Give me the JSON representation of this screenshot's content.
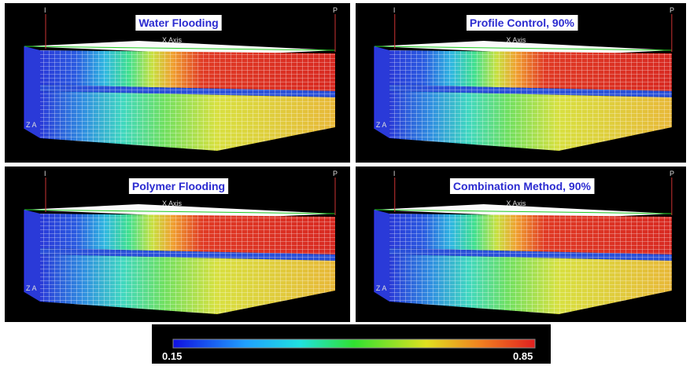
{
  "panels": [
    {
      "title": "Water Flooding",
      "injector": "I",
      "producer": "P",
      "x_axis": "X Axis",
      "z_axis": "Z A"
    },
    {
      "title": "Profile Control, 90%",
      "injector": "I",
      "producer": "P",
      "x_axis": "X Axis",
      "z_axis": "Z A"
    },
    {
      "title": "Polymer Flooding",
      "injector": "I",
      "producer": "P",
      "x_axis": "X Axis",
      "z_axis": "Z A"
    },
    {
      "title": "Combination Method, 90%",
      "injector": "I",
      "producer": "P",
      "x_axis": "X Axis",
      "z_axis": "Z A"
    }
  ],
  "colorbar": {
    "min": 0.15,
    "max": 0.85
  }
}
